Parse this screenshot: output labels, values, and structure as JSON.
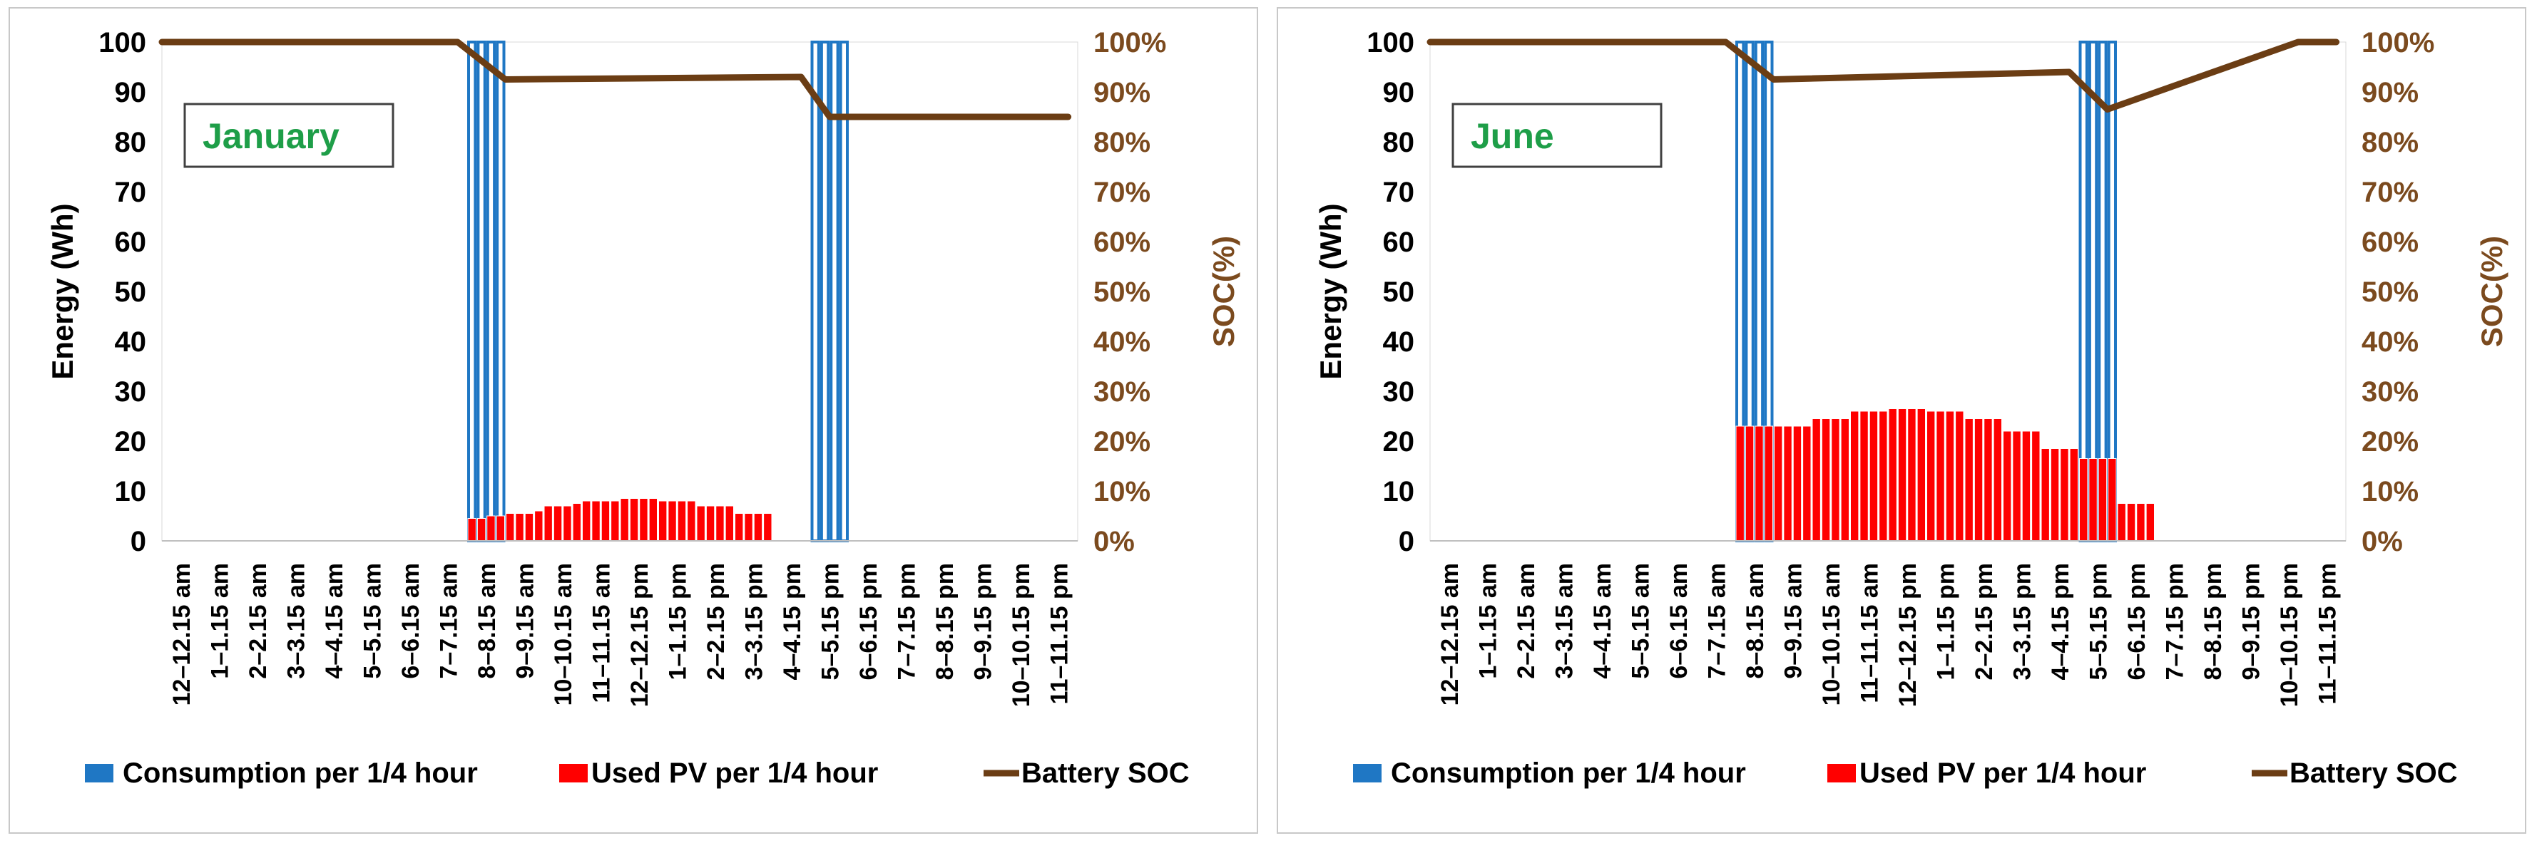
{
  "colors": {
    "consumption": "#1f77c4",
    "used_pv": "#ff0000",
    "soc": "#6b3d14",
    "month_label": "#1e9e48",
    "y2_axis": "#7b4a1e"
  },
  "chart_data": [
    {
      "type": "bar+line",
      "panel_label": "January",
      "categories": [
        "12–12.15 am",
        "1–1.15 am",
        "2–2.15 am",
        "3–3.15 am",
        "4–4.15 am",
        "5–5.15 am",
        "6–6.15 am",
        "7–7.15 am",
        "8–8.15 am",
        "9–9.15 am",
        "10–10.15 am",
        "11–11.15 am",
        "12–12.15 pm",
        "1–1.15 pm",
        "2–2.15 pm",
        "3–3.15 pm",
        "4–4.15 pm",
        "5–5.15 pm",
        "6–6.15 pm",
        "7–7.15 pm",
        "8–8.15 pm",
        "9–9.15 pm",
        "10–10.15 pm",
        "11–11.15 pm"
      ],
      "ylabel": "Energy (Wh)",
      "y2label": "SOC(%)",
      "ylim": [
        0,
        100
      ],
      "yticks": [
        "0",
        "10",
        "20",
        "30",
        "40",
        "50",
        "60",
        "70",
        "80",
        "90",
        "100"
      ],
      "y2ticks": [
        "0%",
        "10%",
        "20%",
        "30%",
        "40%",
        "50%",
        "60%",
        "70%",
        "80%",
        "90%",
        "100%"
      ],
      "series": [
        {
          "name": "Consumption per 1/4 hour",
          "kind": "bar",
          "points": [
            [
              8,
              100
            ],
            [
              8.25,
              100
            ],
            [
              8.5,
              100
            ],
            [
              8.75,
              100
            ],
            [
              17,
              100
            ],
            [
              17.25,
              100
            ],
            [
              17.5,
              100
            ],
            [
              17.75,
              100
            ]
          ]
        },
        {
          "name": "Used PV per 1/4 hour",
          "kind": "bar",
          "points": [
            [
              8,
              4.5
            ],
            [
              8.25,
              4.5
            ],
            [
              8.5,
              5
            ],
            [
              8.75,
              5
            ],
            [
              9,
              5.5
            ],
            [
              9.25,
              5.5
            ],
            [
              9.5,
              5.5
            ],
            [
              9.75,
              6
            ],
            [
              10,
              7
            ],
            [
              10.25,
              7
            ],
            [
              10.5,
              7
            ],
            [
              10.75,
              7.5
            ],
            [
              11,
              8
            ],
            [
              11.25,
              8
            ],
            [
              11.5,
              8
            ],
            [
              11.75,
              8
            ],
            [
              12,
              8.5
            ],
            [
              12.25,
              8.5
            ],
            [
              12.5,
              8.5
            ],
            [
              12.75,
              8.5
            ],
            [
              13,
              8
            ],
            [
              13.25,
              8
            ],
            [
              13.5,
              8
            ],
            [
              13.75,
              8
            ],
            [
              14,
              7
            ],
            [
              14.25,
              7
            ],
            [
              14.5,
              7
            ],
            [
              14.75,
              7
            ],
            [
              15,
              5.5
            ],
            [
              15.25,
              5.5
            ],
            [
              15.5,
              5.5
            ],
            [
              15.75,
              5.5
            ]
          ]
        },
        {
          "name": "Battery SOC",
          "kind": "line",
          "axis": "secondary",
          "x": [
            0,
            7.75,
            9,
            16.75,
            17.5,
            23.75
          ],
          "y": [
            100,
            100,
            92.5,
            93,
            85,
            85
          ]
        }
      ]
    },
    {
      "type": "bar+line",
      "panel_label": "June",
      "categories": [
        "12–12.15 am",
        "1–1.15 am",
        "2–2.15 am",
        "3–3.15 am",
        "4–4.15 am",
        "5–5.15 am",
        "6–6.15 am",
        "7–7.15 am",
        "8–8.15 am",
        "9–9.15 am",
        "10–10.15 am",
        "11–11.15 am",
        "12–12.15 pm",
        "1–1.15 pm",
        "2–2.15 pm",
        "3–3.15 pm",
        "4–4.15 pm",
        "5–5.15 pm",
        "6–6.15 pm",
        "7–7.15 pm",
        "8–8.15 pm",
        "9–9.15 pm",
        "10–10.15 pm",
        "11–11.15 pm"
      ],
      "ylabel": "Energy (Wh)",
      "y2label": "SOC(%)",
      "ylim": [
        0,
        100
      ],
      "yticks": [
        "0",
        "10",
        "20",
        "30",
        "40",
        "50",
        "60",
        "70",
        "80",
        "90",
        "100"
      ],
      "y2ticks": [
        "0%",
        "10%",
        "20%",
        "30%",
        "40%",
        "50%",
        "60%",
        "70%",
        "80%",
        "90%",
        "100%"
      ],
      "series": [
        {
          "name": "Consumption per 1/4 hour",
          "kind": "bar",
          "points": [
            [
              8,
              100
            ],
            [
              8.25,
              100
            ],
            [
              8.5,
              100
            ],
            [
              8.75,
              100
            ],
            [
              17,
              100
            ],
            [
              17.25,
              100
            ],
            [
              17.5,
              100
            ],
            [
              17.75,
              100
            ]
          ]
        },
        {
          "name": "Used PV per 1/4 hour",
          "kind": "bar",
          "points": [
            [
              8,
              23
            ],
            [
              8.25,
              23
            ],
            [
              8.5,
              23
            ],
            [
              8.75,
              23
            ],
            [
              9,
              23
            ],
            [
              9.25,
              23
            ],
            [
              9.5,
              23
            ],
            [
              9.75,
              23
            ],
            [
              10,
              24.5
            ],
            [
              10.25,
              24.5
            ],
            [
              10.5,
              24.5
            ],
            [
              10.75,
              24.5
            ],
            [
              11,
              26
            ],
            [
              11.25,
              26
            ],
            [
              11.5,
              26
            ],
            [
              11.75,
              26
            ],
            [
              12,
              26.5
            ],
            [
              12.25,
              26.5
            ],
            [
              12.5,
              26.5
            ],
            [
              12.75,
              26.5
            ],
            [
              13,
              26
            ],
            [
              13.25,
              26
            ],
            [
              13.5,
              26
            ],
            [
              13.75,
              26
            ],
            [
              14,
              24.5
            ],
            [
              14.25,
              24.5
            ],
            [
              14.5,
              24.5
            ],
            [
              14.75,
              24.5
            ],
            [
              15,
              22
            ],
            [
              15.25,
              22
            ],
            [
              15.5,
              22
            ],
            [
              15.75,
              22
            ],
            [
              16,
              18.5
            ],
            [
              16.25,
              18.5
            ],
            [
              16.5,
              18.5
            ],
            [
              16.75,
              18.5
            ],
            [
              17,
              16.5
            ],
            [
              17.25,
              16.5
            ],
            [
              17.5,
              16.5
            ],
            [
              17.75,
              16.5
            ],
            [
              18,
              7.5
            ],
            [
              18.25,
              7.5
            ],
            [
              18.5,
              7.5
            ],
            [
              18.75,
              7.5
            ]
          ]
        },
        {
          "name": "Battery SOC",
          "kind": "line",
          "axis": "secondary",
          "x": [
            0,
            7.75,
            9,
            16.75,
            17.75,
            22.75,
            23.75
          ],
          "y": [
            100,
            100,
            92.5,
            94,
            86.5,
            100,
            100
          ]
        }
      ]
    }
  ]
}
